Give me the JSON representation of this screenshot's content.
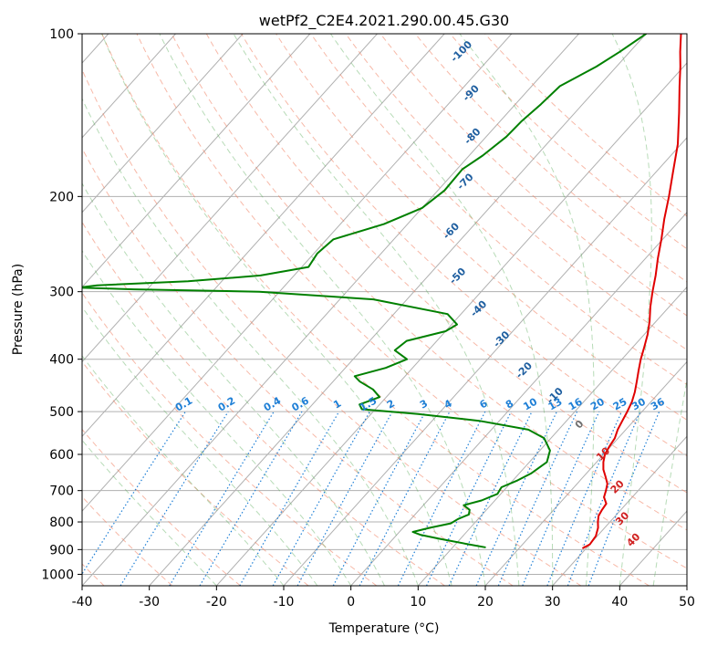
{
  "chart_data": {
    "type": "line",
    "title": "wetPf2_C2E4.2021.290.00.45.G30",
    "xlabel": "Temperature (°C)",
    "ylabel": "Pressure (hPa)",
    "xlim": [
      -40,
      50
    ],
    "ylim": [
      1050,
      100
    ],
    "y_scale": "log",
    "x_ticks": [
      -40,
      -30,
      -20,
      -10,
      0,
      10,
      20,
      30,
      40,
      50
    ],
    "y_ticks": [
      100,
      200,
      300,
      400,
      500,
      600,
      700,
      800,
      900,
      1000
    ],
    "grid": true,
    "skew_T_diagram": true,
    "series": [
      {
        "color": "#e00000",
        "points": [
          [
            894,
            29.5
          ],
          [
            880,
            30
          ],
          [
            850,
            29.8
          ],
          [
            820,
            29
          ],
          [
            800,
            28.2
          ],
          [
            780,
            27.5
          ],
          [
            760,
            27.2
          ],
          [
            740,
            27
          ],
          [
            720,
            25.8
          ],
          [
            700,
            25.2
          ],
          [
            680,
            24.5
          ],
          [
            660,
            23.3
          ],
          [
            640,
            22
          ],
          [
            620,
            21
          ],
          [
            600,
            20.2
          ],
          [
            580,
            19.8
          ],
          [
            560,
            19.5
          ],
          [
            540,
            18.8
          ],
          [
            520,
            18.3
          ],
          [
            500,
            17.8
          ],
          [
            480,
            17.2
          ],
          [
            460,
            16.3
          ],
          [
            440,
            15.2
          ],
          [
            420,
            14
          ],
          [
            400,
            12.8
          ],
          [
            380,
            11.7
          ],
          [
            360,
            10.5
          ],
          [
            340,
            9
          ],
          [
            320,
            7.2
          ],
          [
            300,
            5.5
          ],
          [
            280,
            3.8
          ],
          [
            260,
            1.8
          ],
          [
            240,
            -0.2
          ],
          [
            220,
            -2.5
          ],
          [
            200,
            -4.8
          ],
          [
            180,
            -7.5
          ],
          [
            160,
            -10.5
          ],
          [
            140,
            -14.5
          ],
          [
            125,
            -18
          ],
          [
            115,
            -20.5
          ],
          [
            108,
            -22.5
          ],
          [
            100,
            -24.8
          ]
        ]
      },
      {
        "color": "#008000",
        "points": [
          [
            891,
            14.8
          ],
          [
            880,
            12
          ],
          [
            860,
            7
          ],
          [
            845,
            3.5
          ],
          [
            835,
            2
          ],
          [
            820,
            4
          ],
          [
            805,
            6.5
          ],
          [
            790,
            7
          ],
          [
            775,
            8
          ],
          [
            760,
            7.5
          ],
          [
            745,
            6
          ],
          [
            730,
            8
          ],
          [
            710,
            9.5
          ],
          [
            690,
            9.2
          ],
          [
            670,
            10.7
          ],
          [
            650,
            11.8
          ],
          [
            620,
            12.6
          ],
          [
            590,
            11.5
          ],
          [
            560,
            9
          ],
          [
            540,
            5.5
          ],
          [
            520,
            -3
          ],
          [
            505,
            -13
          ],
          [
            495,
            -22
          ],
          [
            485,
            -23
          ],
          [
            470,
            -21
          ],
          [
            455,
            -23
          ],
          [
            440,
            -26
          ],
          [
            430,
            -27.5
          ],
          [
            415,
            -24
          ],
          [
            400,
            -22
          ],
          [
            385,
            -25
          ],
          [
            370,
            -24.5
          ],
          [
            355,
            -20
          ],
          [
            345,
            -19.2
          ],
          [
            330,
            -22
          ],
          [
            310,
            -35
          ],
          [
            300,
            -53
          ],
          [
            297,
            -72
          ],
          [
            295,
            -80.5
          ],
          [
            292,
            -78
          ],
          [
            287,
            -65
          ],
          [
            280,
            -55
          ],
          [
            270,
            -49
          ],
          [
            255,
            -49.5
          ],
          [
            240,
            -49
          ],
          [
            225,
            -43.5
          ],
          [
            210,
            -40
          ],
          [
            195,
            -39
          ],
          [
            178,
            -39.2
          ],
          [
            168,
            -38
          ],
          [
            155,
            -37
          ],
          [
            145,
            -36.8
          ],
          [
            135,
            -36.2
          ],
          [
            125,
            -35.8
          ],
          [
            115,
            -33
          ],
          [
            108,
            -31.5
          ],
          [
            100,
            -30
          ]
        ]
      }
    ],
    "dry_adiabats_C": [
      -100,
      -90,
      -80,
      -70,
      -60,
      -50,
      -40,
      -30,
      -20,
      -10,
      0,
      10,
      20,
      30,
      40,
      50,
      60,
      70,
      80,
      90,
      100,
      110,
      120,
      130,
      140,
      150
    ],
    "moist_adiabat_labels": [
      {
        "text": "-100",
        "p": 108,
        "t": -55
      },
      {
        "text": "-90",
        "p": 129,
        "t": -48
      },
      {
        "text": "-80",
        "p": 155,
        "t": -42
      },
      {
        "text": "-70",
        "p": 188,
        "t": -37
      },
      {
        "text": "-60",
        "p": 232,
        "t": -32.5
      },
      {
        "text": "-50",
        "p": 281,
        "t": -25.5
      },
      {
        "text": "-40",
        "p": 323,
        "t": -18
      },
      {
        "text": "-30",
        "p": 368,
        "t": -10.5
      },
      {
        "text": "-20",
        "p": 420,
        "t": -3
      },
      {
        "text": "-10",
        "p": 468,
        "t": 5
      },
      {
        "text": "0",
        "p": 529,
        "t": 12.5
      },
      {
        "text": "10",
        "p": 600,
        "t": 20
      },
      {
        "text": "20",
        "p": 690,
        "t": 26.5
      },
      {
        "text": "30",
        "p": 790,
        "t": 31.5
      },
      {
        "text": "40",
        "p": 865,
        "t": 36
      }
    ],
    "mixing_ratio_labels": [
      "0.1",
      "0.2",
      "0.4",
      "0.6",
      "1",
      "1.5",
      "2",
      "3",
      "4",
      "6",
      "8",
      "10",
      "13",
      "16",
      "20",
      "25",
      "30",
      "36"
    ],
    "colors": {
      "temperature": "#e00000",
      "dewpoint": "#008000",
      "mixing_ratio": "#1e7fd6",
      "dry_adiabat": "#f08060",
      "moist_adiabat": "#60b060",
      "moist_label": "#1f5fa0",
      "dry_label": "#d02020",
      "grid": "#b0b0b0"
    }
  }
}
